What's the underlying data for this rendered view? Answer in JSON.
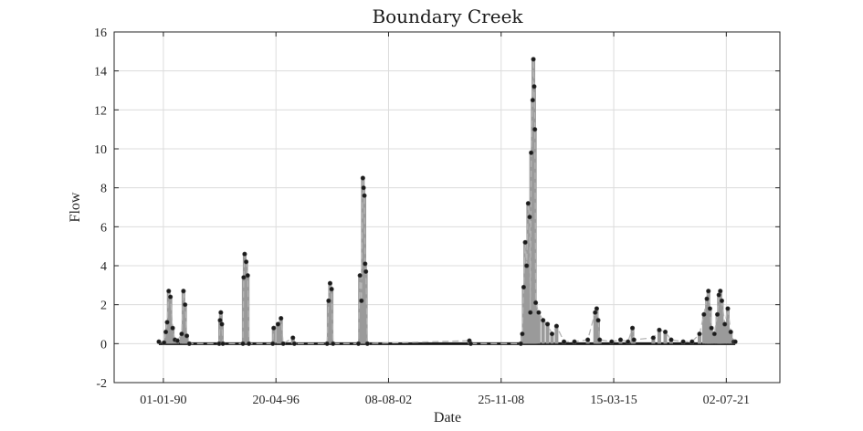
{
  "chart_data": {
    "type": "scatter",
    "title": "Boundary Creek",
    "xlabel": "Date",
    "ylabel": "Flow",
    "x_date_format": "dd-mm-yy",
    "xlim": [
      "1987-04-01",
      "2024-07-01"
    ],
    "ylim": [
      -2,
      16
    ],
    "x_ticks": [
      "01-01-90",
      "20-04-96",
      "08-08-02",
      "25-11-08",
      "15-03-15",
      "02-07-21"
    ],
    "y_ticks": [
      -2,
      0,
      2,
      4,
      6,
      8,
      10,
      12,
      14,
      16
    ],
    "grid": true,
    "colors": {
      "markers": "#1a1a1a",
      "fill": "#9a9a9a",
      "dashed_line": "#b4b4b4"
    },
    "series": [
      {
        "style": "dark circular markers over a grey filled band, connected by a light grey dashed line",
        "points": [
          [
            "1989-10-01",
            0.1
          ],
          [
            "1990-01-15",
            0.05
          ],
          [
            "1990-02-20",
            0.6
          ],
          [
            "1990-03-20",
            1.1
          ],
          [
            "1990-04-20",
            2.7
          ],
          [
            "1990-05-25",
            2.4
          ],
          [
            "1990-07-10",
            0.8
          ],
          [
            "1990-08-25",
            0.2
          ],
          [
            "1990-10-15",
            0.15
          ],
          [
            "1991-01-10",
            0.5
          ],
          [
            "1991-02-15",
            2.7
          ],
          [
            "1991-03-20",
            2.0
          ],
          [
            "1991-04-25",
            0.4
          ],
          [
            "1991-06-15",
            0.0
          ],
          [
            "1993-02-15",
            0.0
          ],
          [
            "1993-03-05",
            1.2
          ],
          [
            "1993-03-20",
            1.6
          ],
          [
            "1993-04-10",
            1.0
          ],
          [
            "1993-05-01",
            0.0
          ],
          [
            "1994-06-15",
            0.0
          ],
          [
            "1994-07-01",
            3.4
          ],
          [
            "1994-07-20",
            4.6
          ],
          [
            "1994-08-20",
            4.2
          ],
          [
            "1994-09-20",
            3.5
          ],
          [
            "1994-10-15",
            0.0
          ],
          [
            "1996-02-15",
            0.0
          ],
          [
            "1996-03-05",
            0.8
          ],
          [
            "1996-06-01",
            1.0
          ],
          [
            "1996-08-01",
            1.3
          ],
          [
            "1996-09-15",
            0.0
          ],
          [
            "1997-04-01",
            0.3
          ],
          [
            "1997-05-01",
            0.0
          ],
          [
            "1999-03-01",
            0.0
          ],
          [
            "1999-04-01",
            2.2
          ],
          [
            "1999-05-01",
            3.1
          ],
          [
            "1999-06-01",
            2.8
          ],
          [
            "1999-07-01",
            0.0
          ],
          [
            "2000-12-01",
            0.0
          ],
          [
            "2001-01-01",
            3.5
          ],
          [
            "2001-02-01",
            2.2
          ],
          [
            "2001-03-01",
            8.5
          ],
          [
            "2001-03-15",
            8.0
          ],
          [
            "2001-04-01",
            7.6
          ],
          [
            "2001-04-15",
            4.1
          ],
          [
            "2001-05-01",
            3.7
          ],
          [
            "2001-06-01",
            0.0
          ],
          [
            "2007-02-15",
            0.15
          ],
          [
            "2007-03-15",
            0.0
          ],
          [
            "2010-01-01",
            0.0
          ],
          [
            "2010-02-01",
            0.5
          ],
          [
            "2010-03-01",
            2.9
          ],
          [
            "2010-04-01",
            5.2
          ],
          [
            "2010-05-01",
            4.0
          ],
          [
            "2010-06-01",
            7.2
          ],
          [
            "2010-07-01",
            6.5
          ],
          [
            "2010-07-15",
            1.6
          ],
          [
            "2010-08-01",
            9.8
          ],
          [
            "2010-09-01",
            12.5
          ],
          [
            "2010-09-15",
            14.6
          ],
          [
            "2010-10-01",
            13.2
          ],
          [
            "2010-10-15",
            11.0
          ],
          [
            "2010-11-01",
            2.1
          ],
          [
            "2011-01-01",
            1.6
          ],
          [
            "2011-04-01",
            1.2
          ],
          [
            "2011-07-01",
            1.0
          ],
          [
            "2011-10-01",
            0.5
          ],
          [
            "2012-01-01",
            0.9
          ],
          [
            "2012-06-01",
            0.1
          ],
          [
            "2013-01-01",
            0.1
          ],
          [
            "2013-10-01",
            0.2
          ],
          [
            "2014-03-01",
            1.6
          ],
          [
            "2014-04-01",
            1.8
          ],
          [
            "2014-05-01",
            1.2
          ],
          [
            "2014-06-01",
            0.2
          ],
          [
            "2015-02-01",
            0.1
          ],
          [
            "2015-08-01",
            0.2
          ],
          [
            "2016-01-01",
            0.1
          ],
          [
            "2016-04-01",
            0.8
          ],
          [
            "2016-05-01",
            0.2
          ],
          [
            "2017-06-01",
            0.3
          ],
          [
            "2017-10-01",
            0.7
          ],
          [
            "2018-02-01",
            0.6
          ],
          [
            "2018-06-01",
            0.2
          ],
          [
            "2019-02-01",
            0.1
          ],
          [
            "2019-08-01",
            0.1
          ],
          [
            "2020-01-01",
            0.5
          ],
          [
            "2020-04-01",
            1.5
          ],
          [
            "2020-06-01",
            2.3
          ],
          [
            "2020-07-01",
            2.7
          ],
          [
            "2020-08-01",
            1.8
          ],
          [
            "2020-09-01",
            0.8
          ],
          [
            "2020-11-01",
            0.5
          ],
          [
            "2021-01-01",
            1.5
          ],
          [
            "2021-02-01",
            2.5
          ],
          [
            "2021-03-01",
            2.7
          ],
          [
            "2021-04-01",
            2.2
          ],
          [
            "2021-06-01",
            1.0
          ],
          [
            "2021-08-01",
            1.8
          ],
          [
            "2021-10-01",
            0.6
          ],
          [
            "2021-12-01",
            0.1
          ],
          [
            "2022-01-01",
            0.1
          ]
        ]
      }
    ]
  }
}
